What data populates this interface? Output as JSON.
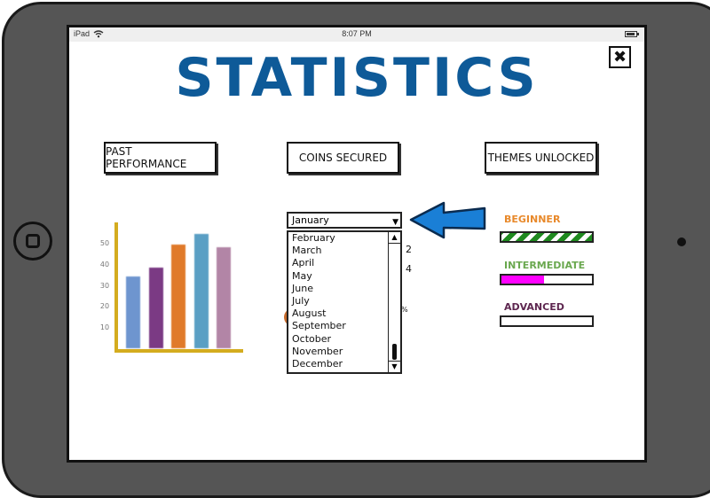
{
  "device": {
    "status_bar": {
      "carrier": "iPad",
      "time": "8:07 PM"
    }
  },
  "page": {
    "title": "STATISTICS",
    "close_label": "✖"
  },
  "tabs": [
    {
      "label": "PAST PERFORMANCE"
    },
    {
      "label": "COINS SECURED"
    },
    {
      "label": "THEMES UNLOCKED"
    }
  ],
  "chart_data": {
    "type": "bar",
    "categories": [
      "",
      "",
      "",
      "",
      ""
    ],
    "values": [
      34,
      38,
      49,
      54,
      48
    ],
    "colors": [
      "#6e95cf",
      "#7b3a84",
      "#e07a2a",
      "#5a9fc4",
      "#b285a6"
    ],
    "yticks": [
      10,
      20,
      30,
      40,
      50
    ],
    "ylim": [
      0,
      60
    ]
  },
  "month_dropdown": {
    "selected": "January",
    "options": [
      "February",
      "March",
      "April",
      "May",
      "June",
      "July",
      "August",
      "September",
      "October",
      "November",
      "December"
    ]
  },
  "hidden_fragments": [
    "2",
    "4",
    "%"
  ],
  "levels": [
    {
      "label": "BEGINNER",
      "progress": 1.0,
      "color": "#e8892b"
    },
    {
      "label": "INTERMEDIATE",
      "progress": 0.47,
      "color": "#6aa84f"
    },
    {
      "label": "ADVANCED",
      "progress": 0.0,
      "color": "#5e2750"
    }
  ],
  "colors": {
    "title": "#0e5a98",
    "arrow": "#1a7fd6",
    "axis": "#d4ac1f"
  }
}
